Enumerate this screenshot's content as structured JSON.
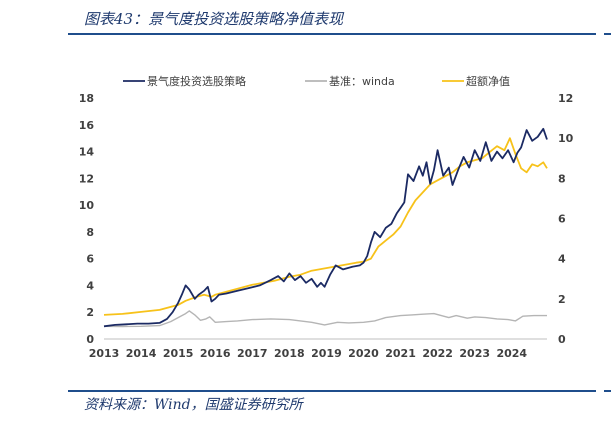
{
  "figure": {
    "title": "图表43：景气度投资选股策略净值表现",
    "source": "资料来源：Wind，国盛证券研究所"
  },
  "colors": {
    "strategy": "#1b2a63",
    "benchmark": "#b5b5b5",
    "excess": "#f7c21a",
    "rule": "#1f4e8c",
    "axis_text": "#404040"
  },
  "chart_data": {
    "type": "line",
    "title": "",
    "legend_position": "top",
    "grid": false,
    "x_ticks": [
      "2013",
      "2014",
      "2015",
      "2016",
      "2017",
      "2018",
      "2019",
      "2020",
      "2021",
      "2022",
      "2023",
      "2024"
    ],
    "xlim": [
      2013.0,
      2024.95
    ],
    "y_left": {
      "lim": [
        0,
        18
      ],
      "ticks": [
        "0",
        "2",
        "4",
        "6",
        "8",
        "10",
        "12",
        "14",
        "16",
        "18"
      ]
    },
    "y_right": {
      "lim": [
        0,
        12
      ],
      "ticks": [
        "0",
        "2",
        "4",
        "6",
        "8",
        "10",
        "12"
      ]
    },
    "series": [
      {
        "name": "景气度投资选股策略",
        "axis": "left",
        "points": [
          [
            2013.0,
            0.95
          ],
          [
            2013.3,
            1.05
          ],
          [
            2013.6,
            1.1
          ],
          [
            2013.9,
            1.15
          ],
          [
            2014.2,
            1.15
          ],
          [
            2014.5,
            1.2
          ],
          [
            2014.7,
            1.5
          ],
          [
            2014.85,
            2.0
          ],
          [
            2015.0,
            2.7
          ],
          [
            2015.1,
            3.3
          ],
          [
            2015.2,
            4.0
          ],
          [
            2015.3,
            3.7
          ],
          [
            2015.45,
            3.0
          ],
          [
            2015.55,
            3.3
          ],
          [
            2015.7,
            3.6
          ],
          [
            2015.8,
            3.9
          ],
          [
            2015.9,
            2.8
          ],
          [
            2016.0,
            3.0
          ],
          [
            2016.1,
            3.3
          ],
          [
            2016.3,
            3.4
          ],
          [
            2016.6,
            3.6
          ],
          [
            2016.9,
            3.8
          ],
          [
            2017.2,
            4.0
          ],
          [
            2017.5,
            4.4
          ],
          [
            2017.7,
            4.7
          ],
          [
            2017.85,
            4.3
          ],
          [
            2018.0,
            4.9
          ],
          [
            2018.15,
            4.4
          ],
          [
            2018.3,
            4.7
          ],
          [
            2018.45,
            4.2
          ],
          [
            2018.6,
            4.5
          ],
          [
            2018.75,
            3.9
          ],
          [
            2018.85,
            4.2
          ],
          [
            2018.95,
            3.9
          ],
          [
            2019.1,
            4.8
          ],
          [
            2019.25,
            5.5
          ],
          [
            2019.45,
            5.2
          ],
          [
            2019.7,
            5.4
          ],
          [
            2019.9,
            5.5
          ],
          [
            2020.0,
            5.7
          ],
          [
            2020.1,
            6.2
          ],
          [
            2020.2,
            7.2
          ],
          [
            2020.3,
            8.0
          ],
          [
            2020.45,
            7.6
          ],
          [
            2020.6,
            8.3
          ],
          [
            2020.75,
            8.6
          ],
          [
            2020.9,
            9.4
          ],
          [
            2021.0,
            9.8
          ],
          [
            2021.1,
            10.2
          ],
          [
            2021.2,
            12.3
          ],
          [
            2021.35,
            11.8
          ],
          [
            2021.5,
            12.9
          ],
          [
            2021.6,
            12.2
          ],
          [
            2021.7,
            13.2
          ],
          [
            2021.8,
            11.6
          ],
          [
            2021.9,
            12.6
          ],
          [
            2022.0,
            14.1
          ],
          [
            2022.15,
            12.2
          ],
          [
            2022.3,
            12.8
          ],
          [
            2022.4,
            11.5
          ],
          [
            2022.55,
            12.6
          ],
          [
            2022.7,
            13.6
          ],
          [
            2022.85,
            12.8
          ],
          [
            2023.0,
            14.1
          ],
          [
            2023.15,
            13.3
          ],
          [
            2023.3,
            14.7
          ],
          [
            2023.45,
            13.3
          ],
          [
            2023.6,
            14.0
          ],
          [
            2023.75,
            13.5
          ],
          [
            2023.9,
            14.1
          ],
          [
            2024.05,
            13.2
          ],
          [
            2024.15,
            13.9
          ],
          [
            2024.25,
            14.3
          ],
          [
            2024.4,
            15.6
          ],
          [
            2024.55,
            14.8
          ],
          [
            2024.7,
            15.1
          ],
          [
            2024.85,
            15.7
          ],
          [
            2024.95,
            14.9
          ]
        ]
      },
      {
        "name": "基准：winda",
        "axis": "left",
        "points": [
          [
            2013.0,
            0.95
          ],
          [
            2013.5,
            0.93
          ],
          [
            2014.0,
            0.95
          ],
          [
            2014.5,
            1.0
          ],
          [
            2014.8,
            1.3
          ],
          [
            2015.0,
            1.6
          ],
          [
            2015.2,
            1.9
          ],
          [
            2015.3,
            2.1
          ],
          [
            2015.45,
            1.8
          ],
          [
            2015.6,
            1.4
          ],
          [
            2015.75,
            1.5
          ],
          [
            2015.85,
            1.65
          ],
          [
            2016.0,
            1.25
          ],
          [
            2016.3,
            1.3
          ],
          [
            2016.6,
            1.35
          ],
          [
            2017.0,
            1.45
          ],
          [
            2017.5,
            1.5
          ],
          [
            2018.0,
            1.45
          ],
          [
            2018.3,
            1.35
          ],
          [
            2018.6,
            1.25
          ],
          [
            2018.95,
            1.05
          ],
          [
            2019.3,
            1.25
          ],
          [
            2019.6,
            1.2
          ],
          [
            2020.0,
            1.25
          ],
          [
            2020.3,
            1.35
          ],
          [
            2020.6,
            1.6
          ],
          [
            2021.0,
            1.75
          ],
          [
            2021.3,
            1.8
          ],
          [
            2021.6,
            1.85
          ],
          [
            2021.9,
            1.9
          ],
          [
            2022.1,
            1.75
          ],
          [
            2022.3,
            1.6
          ],
          [
            2022.5,
            1.75
          ],
          [
            2022.8,
            1.55
          ],
          [
            2023.0,
            1.65
          ],
          [
            2023.3,
            1.6
          ],
          [
            2023.6,
            1.5
          ],
          [
            2023.9,
            1.45
          ],
          [
            2024.1,
            1.35
          ],
          [
            2024.3,
            1.7
          ],
          [
            2024.6,
            1.75
          ],
          [
            2024.95,
            1.75
          ]
        ]
      },
      {
        "name": "超额净值",
        "axis": "right",
        "points": [
          [
            2013.0,
            1.2
          ],
          [
            2013.5,
            1.25
          ],
          [
            2014.0,
            1.35
          ],
          [
            2014.5,
            1.45
          ],
          [
            2014.8,
            1.6
          ],
          [
            2015.0,
            1.7
          ],
          [
            2015.2,
            1.9
          ],
          [
            2015.35,
            2.0
          ],
          [
            2015.5,
            2.1
          ],
          [
            2015.7,
            2.2
          ],
          [
            2015.9,
            2.1
          ],
          [
            2016.0,
            2.2
          ],
          [
            2016.3,
            2.35
          ],
          [
            2016.6,
            2.5
          ],
          [
            2017.0,
            2.7
          ],
          [
            2017.3,
            2.8
          ],
          [
            2017.6,
            2.9
          ],
          [
            2018.0,
            3.1
          ],
          [
            2018.3,
            3.2
          ],
          [
            2018.6,
            3.4
          ],
          [
            2018.9,
            3.5
          ],
          [
            2019.2,
            3.6
          ],
          [
            2019.5,
            3.7
          ],
          [
            2019.8,
            3.8
          ],
          [
            2020.0,
            3.85
          ],
          [
            2020.2,
            4.0
          ],
          [
            2020.4,
            4.6
          ],
          [
            2020.6,
            4.9
          ],
          [
            2020.8,
            5.2
          ],
          [
            2021.0,
            5.6
          ],
          [
            2021.2,
            6.3
          ],
          [
            2021.4,
            6.9
          ],
          [
            2021.6,
            7.3
          ],
          [
            2021.8,
            7.7
          ],
          [
            2022.0,
            7.9
          ],
          [
            2022.2,
            8.1
          ],
          [
            2022.4,
            8.3
          ],
          [
            2022.6,
            8.6
          ],
          [
            2022.8,
            8.8
          ],
          [
            2023.0,
            8.9
          ],
          [
            2023.2,
            9.0
          ],
          [
            2023.4,
            9.3
          ],
          [
            2023.6,
            9.6
          ],
          [
            2023.8,
            9.4
          ],
          [
            2023.95,
            10.0
          ],
          [
            2024.1,
            9.2
          ],
          [
            2024.25,
            8.5
          ],
          [
            2024.4,
            8.3
          ],
          [
            2024.55,
            8.7
          ],
          [
            2024.7,
            8.6
          ],
          [
            2024.85,
            8.8
          ],
          [
            2024.95,
            8.5
          ]
        ]
      }
    ]
  }
}
